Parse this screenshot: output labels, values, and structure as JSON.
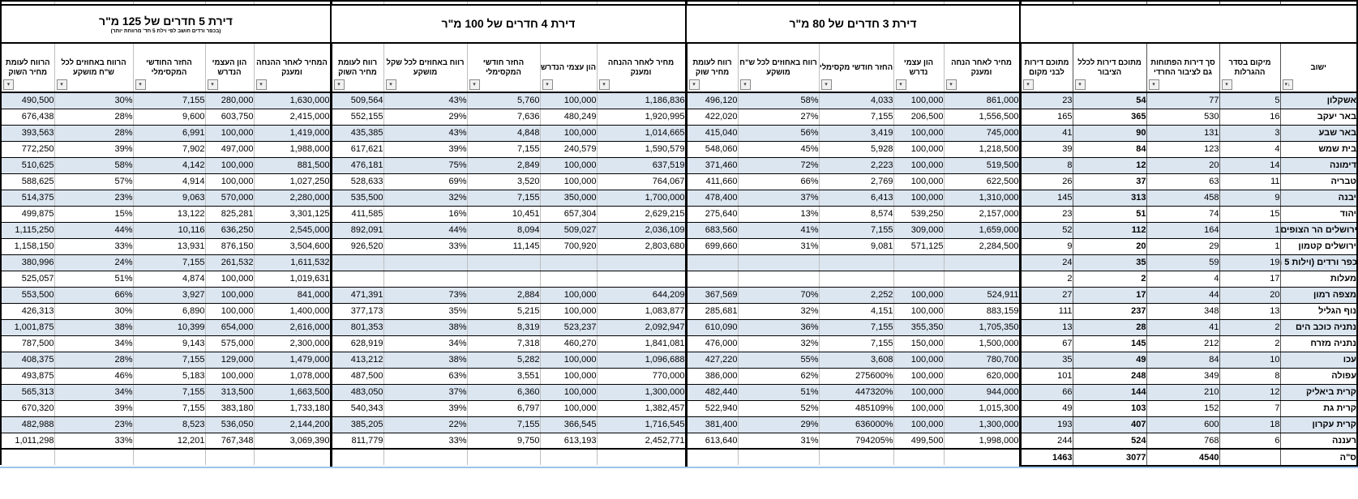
{
  "sheet": {
    "groups": [
      {
        "title": "דירת 5 חדרים של 125 מ\"ר",
        "subtitle": "(בכפר ורדים חושב לפי וילת 5 חד' מרווחת יותר)",
        "columns": [
          "הרווח לעומת מחיר השוק",
          "הרווח באחוזים לכל ש\"ח מושקע",
          "החזר החודשי המקסימלי",
          "הון העצמי הנדרש",
          "המחיר לאחר ההנחה ומענק"
        ]
      },
      {
        "title": "דירת 4 חדרים של 100 מ\"ר",
        "subtitle": "",
        "columns": [
          "רווח לעומת מחיר השוק",
          "רווח באחוזים לכל שקל מושקע",
          "החזר חודשי המקסימלי",
          "הון עצמי הנדרש",
          "מחיר לאחר ההנחה ומענק"
        ]
      },
      {
        "title": "דירת 3 חדרים של 80 מ\"ר",
        "subtitle": "",
        "columns": [
          "רווח לעומת מחיר שוק",
          "רווח באחוזים לכל ש\"ח מושקע",
          "החזר חודשי מקסימלי",
          "הון עצמי נדרש",
          "מחיר לאחר הנחה ומענק"
        ]
      }
    ],
    "summary_columns": [
      "מתוכם דירות לבני מקום",
      "מתוכם דירות לכלל הציבור",
      "סך דירות הפתוחות גם לציבור החרדי",
      "מיקום בסדר ההגרלות"
    ],
    "city_column": "ישוב",
    "filter_icon": "▾",
    "sort_filter_icon": "↓▾",
    "rows": [
      {
        "city": "אשקלון",
        "r5": [
          "490,500",
          "30%",
          "7,155",
          "280,000",
          "1,630,000"
        ],
        "r4": [
          "509,564",
          "43%",
          "5,760",
          "100,000",
          "1,186,836"
        ],
        "r3": [
          "496,120",
          "58%",
          "4,033",
          "100,000",
          "861,000"
        ],
        "local": "23",
        "pub": "54",
        "open": "77",
        "lot": "5"
      },
      {
        "city": "באר יעקב",
        "r5": [
          "676,438",
          "28%",
          "9,600",
          "603,750",
          "2,415,000"
        ],
        "r4": [
          "552,155",
          "29%",
          "7,636",
          "480,249",
          "1,920,995"
        ],
        "r3": [
          "422,020",
          "27%",
          "7,155",
          "206,500",
          "1,556,500"
        ],
        "local": "165",
        "pub": "365",
        "open": "530",
        "lot": "16"
      },
      {
        "city": "באר שבע",
        "r5": [
          "393,563",
          "28%",
          "6,991",
          "100,000",
          "1,419,000"
        ],
        "r4": [
          "435,385",
          "43%",
          "4,848",
          "100,000",
          "1,014,665"
        ],
        "r3": [
          "415,040",
          "56%",
          "3,419",
          "100,000",
          "745,000"
        ],
        "local": "41",
        "pub": "90",
        "open": "131",
        "lot": "3"
      },
      {
        "city": "בית שמש",
        "r5": [
          "772,250",
          "39%",
          "7,902",
          "497,000",
          "1,988,000"
        ],
        "r4": [
          "617,621",
          "39%",
          "7,155",
          "240,579",
          "1,590,579"
        ],
        "r3": [
          "548,060",
          "45%",
          "5,928",
          "100,000",
          "1,218,500"
        ],
        "local": "39",
        "pub": "84",
        "open": "123",
        "lot": "4"
      },
      {
        "city": "דימונה",
        "r5": [
          "510,625",
          "58%",
          "4,142",
          "100,000",
          "881,500"
        ],
        "r4": [
          "476,181",
          "75%",
          "2,849",
          "100,000",
          "637,519"
        ],
        "r3": [
          "371,460",
          "72%",
          "2,223",
          "100,000",
          "519,500"
        ],
        "local": "8",
        "pub": "12",
        "open": "20",
        "lot": "14"
      },
      {
        "city": "טבריה",
        "r5": [
          "588,625",
          "57%",
          "4,914",
          "100,000",
          "1,027,250"
        ],
        "r4": [
          "528,633",
          "69%",
          "3,520",
          "100,000",
          "764,067"
        ],
        "r3": [
          "411,660",
          "66%",
          "2,769",
          "100,000",
          "622,500"
        ],
        "local": "26",
        "pub": "37",
        "open": "63",
        "lot": "11"
      },
      {
        "city": "יבנה",
        "r5": [
          "514,375",
          "23%",
          "9,063",
          "570,000",
          "2,280,000"
        ],
        "r4": [
          "535,500",
          "32%",
          "7,155",
          "350,000",
          "1,700,000"
        ],
        "r3": [
          "478,400",
          "37%",
          "6,413",
          "100,000",
          "1,310,000"
        ],
        "local": "145",
        "pub": "313",
        "open": "458",
        "lot": "9"
      },
      {
        "city": "יהוד",
        "r5": [
          "499,875",
          "15%",
          "13,122",
          "825,281",
          "3,301,125"
        ],
        "r4": [
          "411,585",
          "16%",
          "10,451",
          "657,304",
          "2,629,215"
        ],
        "r3": [
          "275,640",
          "13%",
          "8,574",
          "539,250",
          "2,157,000"
        ],
        "local": "23",
        "pub": "51",
        "open": "74",
        "lot": "15"
      },
      {
        "city": "ירושלים הר הצופים",
        "r5": [
          "1,115,250",
          "44%",
          "10,116",
          "636,250",
          "2,545,000"
        ],
        "r4": [
          "892,091",
          "44%",
          "8,094",
          "509,027",
          "2,036,109"
        ],
        "r3": [
          "683,560",
          "41%",
          "7,155",
          "309,000",
          "1,659,000"
        ],
        "local": "52",
        "pub": "112",
        "open": "164",
        "lot": "1"
      },
      {
        "city": "ירושלים קטמון",
        "r5": [
          "1,158,150",
          "33%",
          "13,931",
          "876,150",
          "3,504,600"
        ],
        "r4": [
          "926,520",
          "33%",
          "11,145",
          "700,920",
          "2,803,680"
        ],
        "r3": [
          "699,660",
          "31%",
          "9,081",
          "571,125",
          "2,284,500"
        ],
        "local": "9",
        "pub": "20",
        "open": "29",
        "lot": "1"
      },
      {
        "city": "כפר ורדים (וילות 5 ח",
        "r5": [
          "380,996",
          "24%",
          "7,155",
          "261,532",
          "1,611,532"
        ],
        "r4": [
          "",
          "",
          "",
          "",
          ""
        ],
        "r3": [
          "",
          "",
          "",
          "",
          ""
        ],
        "local": "24",
        "pub": "35",
        "open": "59",
        "lot": "19"
      },
      {
        "city": "מעלות",
        "r5": [
          "525,057",
          "51%",
          "4,874",
          "100,000",
          "1,019,631"
        ],
        "r4": [
          "",
          "",
          "",
          "",
          ""
        ],
        "r3": [
          "",
          "",
          "",
          "",
          ""
        ],
        "local": "2",
        "pub": "2",
        "open": "4",
        "lot": "17"
      },
      {
        "city": "מצפה רמון",
        "r5": [
          "553,500",
          "66%",
          "3,927",
          "100,000",
          "841,000"
        ],
        "r4": [
          "471,391",
          "73%",
          "2,884",
          "100,000",
          "644,209"
        ],
        "r3": [
          "367,569",
          "70%",
          "2,252",
          "100,000",
          "524,911"
        ],
        "local": "27",
        "pub": "17",
        "open": "44",
        "lot": "20"
      },
      {
        "city": "נוף הגליל",
        "r5": [
          "426,313",
          "30%",
          "6,890",
          "100,000",
          "1,400,000"
        ],
        "r4": [
          "377,173",
          "35%",
          "5,215",
          "100,000",
          "1,083,877"
        ],
        "r3": [
          "285,681",
          "32%",
          "4,151",
          "100,000",
          "883,159"
        ],
        "local": "111",
        "pub": "237",
        "open": "348",
        "lot": "13"
      },
      {
        "city": "נתניה כוכב הים",
        "r5": [
          "1,001,875",
          "38%",
          "10,399",
          "654,000",
          "2,616,000"
        ],
        "r4": [
          "801,353",
          "38%",
          "8,319",
          "523,237",
          "2,092,947"
        ],
        "r3": [
          "610,090",
          "36%",
          "7,155",
          "355,350",
          "1,705,350"
        ],
        "local": "13",
        "pub": "28",
        "open": "41",
        "lot": "2"
      },
      {
        "city": "נתניה מזרח",
        "r5": [
          "787,500",
          "34%",
          "9,143",
          "575,000",
          "2,300,000"
        ],
        "r4": [
          "628,919",
          "34%",
          "7,318",
          "460,270",
          "1,841,081"
        ],
        "r3": [
          "476,000",
          "32%",
          "7,155",
          "150,000",
          "1,500,000"
        ],
        "local": "67",
        "pub": "145",
        "open": "212",
        "lot": "2"
      },
      {
        "city": "עכו",
        "r5": [
          "408,375",
          "28%",
          "7,155",
          "129,000",
          "1,479,000"
        ],
        "r4": [
          "413,212",
          "38%",
          "5,282",
          "100,000",
          "1,096,688"
        ],
        "r3": [
          "427,220",
          "55%",
          "3,608",
          "100,000",
          "780,700"
        ],
        "local": "35",
        "pub": "49",
        "open": "84",
        "lot": "10"
      },
      {
        "city": "עפולה",
        "r5": [
          "493,875",
          "46%",
          "5,183",
          "100,000",
          "1,078,000"
        ],
        "r4": [
          "487,500",
          "63%",
          "3,551",
          "100,000",
          "770,000"
        ],
        "r3": [
          "386,000",
          "62%",
          "275600%",
          "100,000",
          "620,000"
        ],
        "local": "101",
        "pub": "248",
        "open": "349",
        "lot": "8"
      },
      {
        "city": "קרית ביאליק",
        "r5": [
          "565,313",
          "34%",
          "7,155",
          "313,500",
          "1,663,500"
        ],
        "r4": [
          "483,050",
          "37%",
          "6,360",
          "100,000",
          "1,300,000"
        ],
        "r3": [
          "482,440",
          "51%",
          "447320%",
          "100,000",
          "944,000"
        ],
        "local": "66",
        "pub": "144",
        "open": "210",
        "lot": "12"
      },
      {
        "city": "קרית גת",
        "r5": [
          "670,320",
          "39%",
          "7,155",
          "383,180",
          "1,733,180"
        ],
        "r4": [
          "540,343",
          "39%",
          "6,797",
          "100,000",
          "1,382,457"
        ],
        "r3": [
          "522,940",
          "52%",
          "485109%",
          "100,000",
          "1,015,300"
        ],
        "local": "49",
        "pub": "103",
        "open": "152",
        "lot": "7"
      },
      {
        "city": "קרית עקרון",
        "r5": [
          "482,988",
          "23%",
          "8,523",
          "536,050",
          "2,144,200"
        ],
        "r4": [
          "385,205",
          "22%",
          "7,155",
          "366,545",
          "1,716,545"
        ],
        "r3": [
          "381,400",
          "29%",
          "636000%",
          "100,000",
          "1,300,000"
        ],
        "local": "193",
        "pub": "407",
        "open": "600",
        "lot": "18"
      },
      {
        "city": "רעננה",
        "r5": [
          "1,011,298",
          "33%",
          "12,201",
          "767,348",
          "3,069,390"
        ],
        "r4": [
          "811,779",
          "33%",
          "9,750",
          "613,193",
          "2,452,771"
        ],
        "r3": [
          "613,640",
          "31%",
          "794205%",
          "499,500",
          "1,998,000"
        ],
        "local": "244",
        "pub": "524",
        "open": "768",
        "lot": "6"
      }
    ],
    "total_row": {
      "label": "ס\"ה",
      "local": "1463",
      "pub": "3077",
      "open": "4540"
    },
    "colors": {
      "banded_row": "#dce6f1",
      "grid_light": "#bfbfbf",
      "grid_heavy": "#000000",
      "freeze_line": "#9dc3e6"
    }
  }
}
